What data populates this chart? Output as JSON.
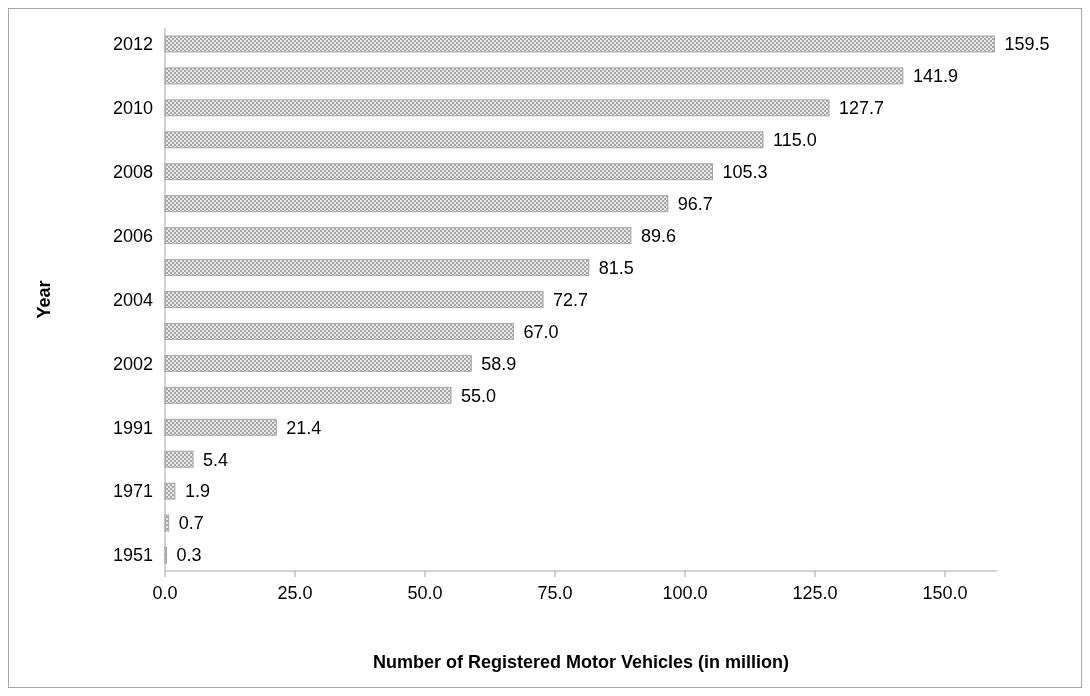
{
  "chart_data": {
    "type": "bar",
    "orientation": "horizontal",
    "xlabel": "Number of Registered Motor Vehicles (in million)",
    "ylabel": "Year",
    "categories": [
      "2012",
      null,
      "2010",
      null,
      "2008",
      null,
      "2006",
      null,
      "2004",
      null,
      "2002",
      null,
      "1991",
      null,
      "1971",
      null,
      "1951"
    ],
    "values": [
      159.5,
      141.9,
      127.7,
      115.0,
      105.3,
      96.7,
      89.6,
      81.5,
      72.7,
      67.0,
      58.9,
      55.0,
      21.4,
      5.4,
      1.9,
      0.7,
      0.3
    ],
    "value_labels": [
      "159.5",
      "141.9",
      "127.7",
      "115.0",
      "105.3",
      "96.7",
      "89.6",
      "81.5",
      "72.7",
      "67.0",
      "58.9",
      "55.0",
      "21.4",
      "5.4",
      "1.9",
      "0.7",
      "0.3"
    ],
    "color": "#a6a6a6",
    "xlim": [
      0,
      160
    ],
    "xticks": [
      {
        "value": 0,
        "label": "0.0"
      },
      {
        "value": 25,
        "label": "25.0"
      },
      {
        "value": 50,
        "label": "50.0"
      },
      {
        "value": 75,
        "label": "75.0"
      },
      {
        "value": 100,
        "label": "100.0"
      },
      {
        "value": 125,
        "label": "125.0"
      },
      {
        "value": 150,
        "label": "150.0"
      }
    ],
    "grid": false
  }
}
